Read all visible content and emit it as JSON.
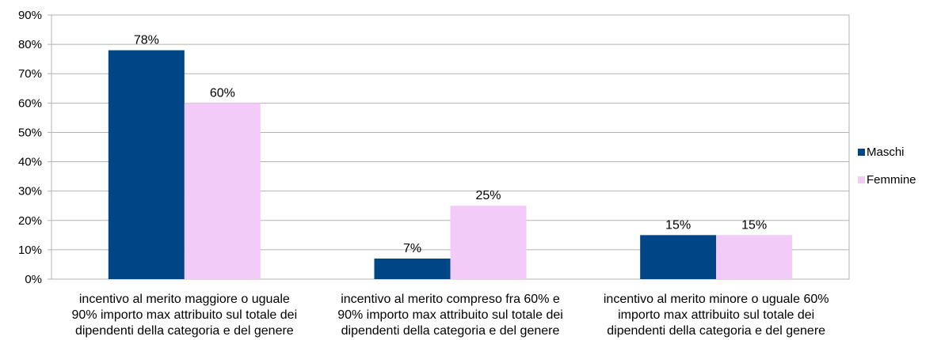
{
  "chart_data": {
    "type": "bar",
    "categories": [
      [
        "incentivo al merito maggiore o uguale",
        "90% importo max attribuito sul totale dei",
        "dipendenti della categoria e del genere"
      ],
      [
        "incentivo al merito compreso fra 60% e",
        "90% importo max attribuito sul totale dei",
        "dipendenti della categoria e del genere"
      ],
      [
        "incentivo al merito minore o uguale 60%",
        "importo max attribuito sul totale dei",
        "dipendenti della categoria e del genere"
      ]
    ],
    "series": [
      {
        "name": "Maschi",
        "values": [
          78,
          7,
          15
        ],
        "labels": [
          "78%",
          "7%",
          "15%"
        ],
        "color": "#004586"
      },
      {
        "name": "Femmine",
        "values": [
          60,
          25,
          15
        ],
        "labels": [
          "60%",
          "25%",
          "15%"
        ],
        "color": "#F2CBF8"
      }
    ],
    "ylim": [
      0,
      90
    ],
    "yticks": [
      "0%",
      "10%",
      "20%",
      "30%",
      "40%",
      "50%",
      "60%",
      "70%",
      "80%",
      "90%"
    ],
    "grid": true,
    "legend": "right"
  }
}
